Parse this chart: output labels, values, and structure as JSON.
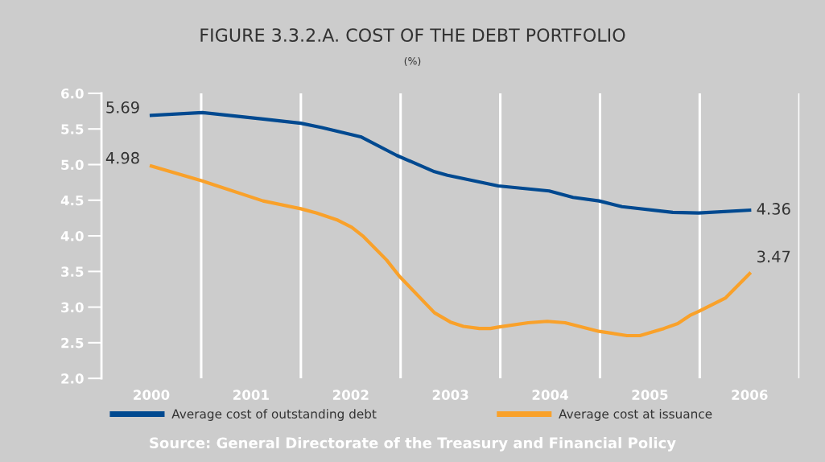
{
  "chart_data": {
    "type": "line",
    "title": "FIGURE 3.3.2.A. COST OF THE DEBT PORTFOLIO",
    "subtitle": "(%)",
    "series": [
      {
        "name": "Average cost of outstanding debt",
        "color": "#004990",
        "x": [
          2000,
          2000.51,
          2001.12,
          2001.5,
          2001.71,
          2002.1,
          2002.46,
          2002.84,
          2002.97,
          2003.48,
          2003.99,
          2004.23,
          2004.49,
          2004.72,
          2005.23,
          2005.49,
          2006
        ],
        "values": [
          5.69,
          5.73,
          5.64,
          5.58,
          5.52,
          5.39,
          5.13,
          4.9,
          4.85,
          4.7,
          4.63,
          4.54,
          4.49,
          4.41,
          4.33,
          4.32,
          4.36
        ],
        "value_labels": [
          "5.69",
          null,
          null,
          null,
          null,
          null,
          null,
          null,
          null,
          null,
          null,
          null,
          null,
          null,
          null,
          null,
          "4.36"
        ]
      },
      {
        "name": "Average cost at issuance",
        "color": "#f9a12a",
        "x": [
          2000,
          2000.51,
          2001.12,
          2001.5,
          2001.66,
          2001.87,
          2002.01,
          2002.12,
          2002.36,
          2002.49,
          2002.84,
          2003.0,
          2003.13,
          2003.29,
          2003.4,
          2003.48,
          2003.78,
          2003.97,
          2004.15,
          2004.49,
          2004.77,
          2004.9,
          2005.14,
          2005.28,
          2005.41,
          2005.49,
          2005.76,
          2006
        ],
        "values": [
          4.98,
          4.77,
          4.49,
          4.38,
          4.32,
          4.22,
          4.12,
          4.0,
          3.66,
          3.43,
          2.92,
          2.79,
          2.73,
          2.7,
          2.7,
          2.72,
          2.78,
          2.8,
          2.78,
          2.66,
          2.6,
          2.6,
          2.7,
          2.77,
          2.89,
          2.94,
          3.13,
          3.47
        ],
        "value_labels": [
          "4.98",
          null,
          null,
          null,
          null,
          null,
          null,
          null,
          null,
          null,
          null,
          null,
          null,
          null,
          null,
          null,
          null,
          null,
          null,
          null,
          null,
          null,
          null,
          null,
          null,
          null,
          null,
          "3.47"
        ]
      }
    ],
    "xlim": [
      1999.5,
      2006.5
    ],
    "xticks": [
      2000,
      2001,
      2002,
      2003,
      2004,
      2005,
      2006
    ],
    "ylim": [
      2.0,
      6.0
    ],
    "yticks": [
      {
        "value": 2.0,
        "label": "2.0"
      },
      {
        "value": 2.5,
        "label": "2.5"
      },
      {
        "value": 3.0,
        "label": "3.0"
      },
      {
        "value": 3.5,
        "label": "3.5"
      },
      {
        "value": 4.0,
        "label": "4.0"
      },
      {
        "value": 4.5,
        "label": "4.5"
      },
      {
        "value": 5.0,
        "label": "5.0"
      },
      {
        "value": 5.5,
        "label": "5.5"
      },
      {
        "value": 6.0,
        "label": "6.0"
      }
    ],
    "ref_lines": [
      {
        "axis": "x",
        "value": 2000.5,
        "color": "#ffffff"
      },
      {
        "axis": "x",
        "value": 2001.5,
        "color": "#ffffff"
      },
      {
        "axis": "x",
        "value": 2002.5,
        "color": "#ffffff"
      },
      {
        "axis": "x",
        "value": 2003.5,
        "color": "#ffffff"
      },
      {
        "axis": "x",
        "value": 2004.5,
        "color": "#ffffff"
      },
      {
        "axis": "x",
        "value": 2005.5,
        "color": "#ffffff"
      },
      {
        "axis": "x",
        "value": 2006.5,
        "color": "#ffffff"
      }
    ],
    "grid": false,
    "legend": "bottom",
    "marker": "none",
    "line_style": "solid",
    "annotations": [
      "Source: General Directorate of the Treasury and Financial Policy"
    ]
  }
}
